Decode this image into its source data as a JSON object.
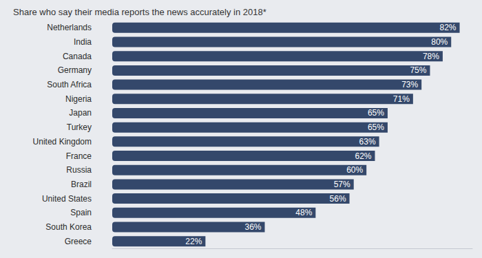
{
  "chart_data": {
    "type": "bar",
    "title": "Share who say their media reports the news accurately in 2018*",
    "orientation": "horizontal",
    "categories": [
      "Netherlands",
      "India",
      "Canada",
      "Germany",
      "South Africa",
      "Nigeria",
      "Japan",
      "Turkey",
      "United Kingdom",
      "France",
      "Russia",
      "Brazil",
      "United States",
      "Spain",
      "South Korea",
      "Greece"
    ],
    "values": [
      82,
      80,
      78,
      75,
      73,
      71,
      65,
      65,
      63,
      62,
      60,
      57,
      56,
      48,
      36,
      22
    ],
    "value_labels": [
      "82%",
      "80%",
      "78%",
      "75%",
      "73%",
      "71%",
      "65%",
      "65%",
      "63%",
      "62%",
      "60%",
      "57%",
      "56%",
      "48%",
      "36%",
      "22%"
    ],
    "color": "#34486b",
    "data_labels": true,
    "xlim": [
      0,
      85
    ],
    "grid": false,
    "tick_labels": "y"
  }
}
